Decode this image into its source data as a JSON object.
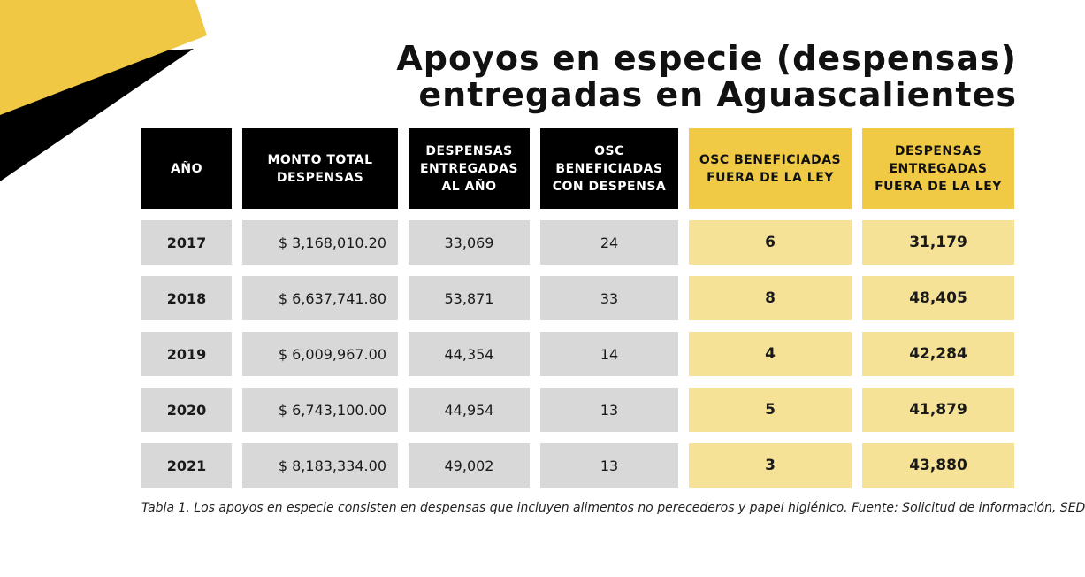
{
  "title": {
    "line1": "Apoyos en especie (despensas)",
    "line2": "entregadas en Aguascalientes"
  },
  "colors": {
    "header_dark": "#000000",
    "header_gold": "#f1ca45",
    "cell_grey": "#d8d8d8",
    "cell_light_gold": "#f6e296",
    "deco_yellow": "#f1c843"
  },
  "table": {
    "headers": [
      "AÑO",
      "MONTO TOTAL DESPENSAS",
      "DESPENSAS ENTREGADAS AL AÑO",
      "OSC BENEFICIADAS CON DESPENSA",
      "OSC BENEFICIADAS FUERA DE LA LEY",
      "DESPENSAS ENTREGADAS FUERA DE LA LEY"
    ],
    "rows": [
      [
        "2017",
        "$ 3,168,010.20",
        "33,069",
        "24",
        "6",
        "31,179"
      ],
      [
        "2018",
        "$ 6,637,741.80",
        "53,871",
        "33",
        "8",
        "48,405"
      ],
      [
        "2019",
        "$ 6,009,967.00",
        "44,354",
        "14",
        "4",
        "42,284"
      ],
      [
        "2020",
        "$ 6,743,100.00",
        "44,954",
        "13",
        "5",
        "41,879"
      ],
      [
        "2021",
        "$ 8,183,334.00",
        "49,002",
        "13",
        "3",
        "43,880"
      ]
    ]
  },
  "caption": "Tabla 1. Los apoyos en especie consisten en despensas que incluyen alimentos no perecederos y papel higiénico. Fuente: Solicitud de información, SEDESO."
}
